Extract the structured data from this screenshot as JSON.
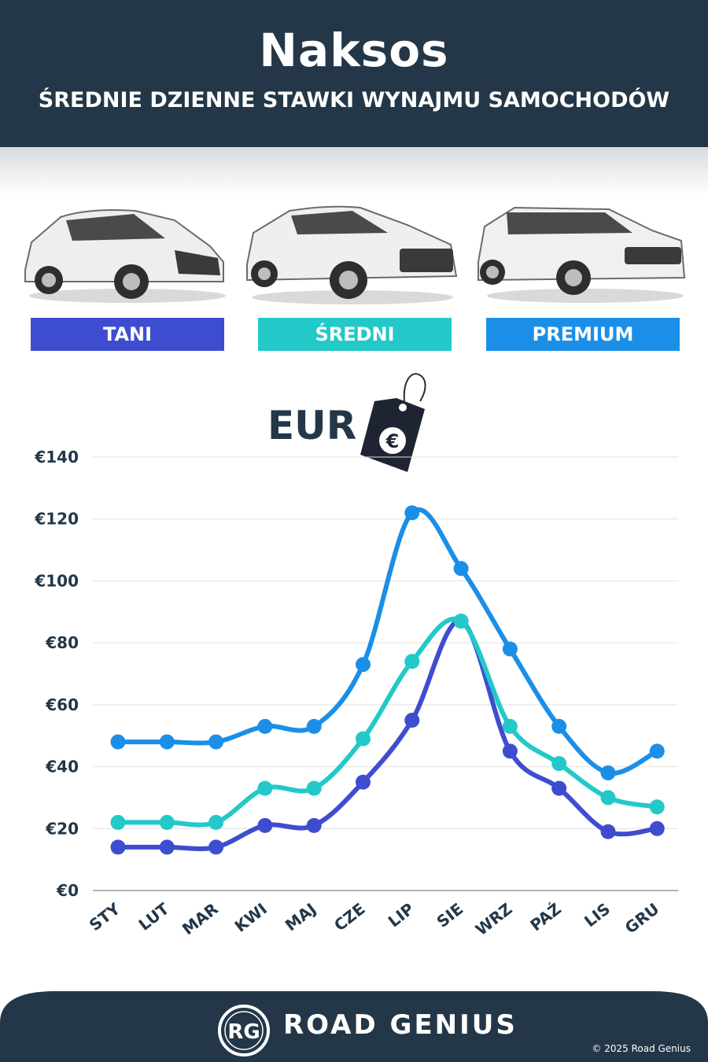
{
  "header": {
    "title": "Naksos",
    "subtitle": "ŚREDNIE DZIENNE STAWKI WYNAJMU SAMOCHODÓW"
  },
  "categories": [
    {
      "label": "TANI",
      "color": "#3e4dd0"
    },
    {
      "label": "ŚREDNI",
      "color": "#23c9c8"
    },
    {
      "label": "PREMIUM",
      "color": "#1b8fe8"
    }
  ],
  "currency_label": "EUR",
  "chart_data": {
    "type": "line",
    "categories": [
      "STY",
      "LUT",
      "MAR",
      "KWI",
      "MAJ",
      "CZE",
      "LIP",
      "SIE",
      "WRZ",
      "PAŹ",
      "LIS",
      "GRU"
    ],
    "ylim": [
      0,
      140
    ],
    "yticks": [
      "€0",
      "€20",
      "€40",
      "€60",
      "€80",
      "€100",
      "€120",
      "€140"
    ],
    "grid": true,
    "series": [
      {
        "name": "TANI",
        "color": "#3e4dd0",
        "values": [
          14,
          14,
          14,
          21,
          21,
          35,
          55,
          87,
          45,
          33,
          19,
          20
        ]
      },
      {
        "name": "ŚREDNI",
        "color": "#23c9c8",
        "values": [
          22,
          22,
          22,
          33,
          33,
          49,
          74,
          87,
          53,
          41,
          30,
          27
        ]
      },
      {
        "name": "PREMIUM",
        "color": "#1b8fe8",
        "values": [
          48,
          48,
          48,
          53,
          53,
          73,
          122,
          104,
          78,
          53,
          38,
          45
        ]
      }
    ]
  },
  "footer": {
    "logo_text": "RG",
    "brand": "ROAD GENIUS",
    "copyright": "© 2025 Road Genius",
    "bg_color": "#233748"
  }
}
